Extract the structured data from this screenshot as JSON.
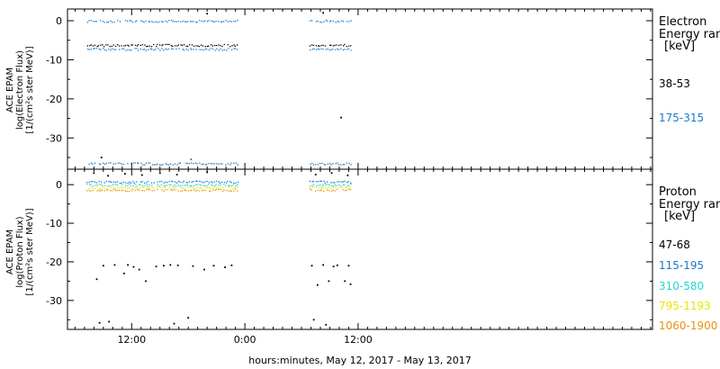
{
  "chart_data": [
    {
      "type": "scatter",
      "ylabel_lines": [
        "ACE EPAM",
        "log(Electron Flux)",
        "[1/(cm²s ster MeV)]"
      ],
      "ylim": [
        -38,
        3
      ],
      "yticks": [
        0,
        -10,
        -20,
        -30
      ],
      "ytick_labels": [
        "0",
        "-10",
        "-20",
        "-30"
      ],
      "xlim": [
        5.2,
        67.2
      ],
      "legend_title": "Electron",
      "legend_subtitle": "Energy ran",
      "legend_unit": "[keV]",
      "series": [
        {
          "name": "38-53",
          "color": "#000000",
          "segments": [
            {
              "x0": 7.2,
              "x1": 23.3,
              "y": -6.2
            },
            {
              "x0": 30.8,
              "x1": 35.3,
              "y": -6.2
            }
          ],
          "outliers": [
            {
              "x": 20.0,
              "y": 1.8
            },
            {
              "x": 32.3,
              "y": 2.0
            },
            {
              "x": 34.2,
              "y": -24.8
            },
            {
              "x": 8.8,
              "y": -35.0
            }
          ]
        },
        {
          "name": "175-315",
          "color": "#1a78c8",
          "segments": [
            {
              "x0": 7.2,
              "x1": 23.3,
              "y": 0.0
            },
            {
              "x0": 7.2,
              "x1": 23.3,
              "y": -7.2
            },
            {
              "x0": 7.2,
              "x1": 23.3,
              "y": -36.5
            },
            {
              "x0": 30.8,
              "x1": 35.3,
              "y": 0.0
            },
            {
              "x0": 30.8,
              "x1": 35.3,
              "y": -7.2
            },
            {
              "x0": 30.8,
              "x1": 35.3,
              "y": -36.5
            }
          ],
          "outliers": [
            {
              "x": 18.3,
              "y": -35.5
            }
          ]
        }
      ]
    },
    {
      "type": "scatter",
      "ylabel_lines": [
        "ACE EPAM",
        "log(Proton Flux)",
        "[1/(cm²s ster MeV)]"
      ],
      "ylim": [
        -37.5,
        4
      ],
      "yticks": [
        0,
        -10,
        -20,
        -30
      ],
      "ytick_labels": [
        "0",
        "-10",
        "-20",
        "-30"
      ],
      "xlim": [
        5.2,
        67.2
      ],
      "xticks": [
        12,
        24,
        36
      ],
      "xtick_labels": [
        "12:00",
        "0:00",
        "12:00"
      ],
      "xlabel": "hours:minutes, May 12, 2017 - May 13, 2017",
      "legend_title": "Proton",
      "legend_subtitle": "Energy ran",
      "legend_unit": "[keV]",
      "series": [
        {
          "name": "47-68",
          "color": "#000000",
          "segments": [],
          "outliers": [
            {
              "x": 8.0,
              "y": 3.0
            },
            {
              "x": 9.5,
              "y": 2.3
            },
            {
              "x": 11.3,
              "y": 2.8
            },
            {
              "x": 13.1,
              "y": 2.5
            },
            {
              "x": 15.0,
              "y": 3.0
            },
            {
              "x": 16.8,
              "y": 2.6
            },
            {
              "x": 20.0,
              "y": 3.2
            },
            {
              "x": 31.5,
              "y": 2.6
            },
            {
              "x": 33.2,
              "y": 3.0
            },
            {
              "x": 34.9,
              "y": 2.4
            },
            {
              "x": 8.3,
              "y": -24.5
            },
            {
              "x": 9.0,
              "y": -21.0
            },
            {
              "x": 10.2,
              "y": -20.8
            },
            {
              "x": 11.2,
              "y": -23.0
            },
            {
              "x": 11.6,
              "y": -20.8
            },
            {
              "x": 12.2,
              "y": -21.3
            },
            {
              "x": 12.8,
              "y": -22.0
            },
            {
              "x": 13.5,
              "y": -25.0
            },
            {
              "x": 14.6,
              "y": -21.2
            },
            {
              "x": 15.4,
              "y": -21.0
            },
            {
              "x": 16.1,
              "y": -20.8
            },
            {
              "x": 16.9,
              "y": -20.9
            },
            {
              "x": 18.5,
              "y": -21.1
            },
            {
              "x": 19.7,
              "y": -22.0
            },
            {
              "x": 20.7,
              "y": -21.0
            },
            {
              "x": 21.9,
              "y": -21.4
            },
            {
              "x": 22.6,
              "y": -20.9
            },
            {
              "x": 8.6,
              "y": -35.8
            },
            {
              "x": 9.6,
              "y": -35.5
            },
            {
              "x": 16.5,
              "y": -36.0
            },
            {
              "x": 18.0,
              "y": -34.5
            },
            {
              "x": 31.1,
              "y": -21.0
            },
            {
              "x": 31.7,
              "y": -26.0
            },
            {
              "x": 32.3,
              "y": -20.8
            },
            {
              "x": 32.9,
              "y": -25.0
            },
            {
              "x": 33.4,
              "y": -21.2
            },
            {
              "x": 33.8,
              "y": -20.9
            },
            {
              "x": 34.6,
              "y": -25.0
            },
            {
              "x": 35.0,
              "y": -21.0
            },
            {
              "x": 35.2,
              "y": -25.8
            },
            {
              "x": 31.3,
              "y": -35.0
            },
            {
              "x": 32.6,
              "y": -36.3
            }
          ]
        },
        {
          "name": "115-195",
          "color": "#1a78c8",
          "segments": [
            {
              "x0": 7.2,
              "x1": 23.3,
              "y": 0.8
            },
            {
              "x0": 30.8,
              "x1": 35.3,
              "y": 0.8
            }
          ],
          "outliers": []
        },
        {
          "name": "310-580",
          "color": "#22d4d4",
          "segments": [
            {
              "x0": 7.2,
              "x1": 23.3,
              "y": 0.0
            },
            {
              "x0": 30.8,
              "x1": 35.3,
              "y": 0.0
            }
          ],
          "outliers": []
        },
        {
          "name": "795-1193",
          "color": "#e6e600",
          "segments": [
            {
              "x0": 7.2,
              "x1": 23.3,
              "y": -0.7
            },
            {
              "x0": 30.8,
              "x1": 35.3,
              "y": -0.7
            }
          ],
          "outliers": []
        },
        {
          "name": "1060-1900",
          "color": "#e8920c",
          "segments": [
            {
              "x0": 7.2,
              "x1": 23.3,
              "y": -1.3
            },
            {
              "x0": 30.8,
              "x1": 35.3,
              "y": -1.3
            }
          ],
          "outliers": []
        }
      ]
    }
  ]
}
